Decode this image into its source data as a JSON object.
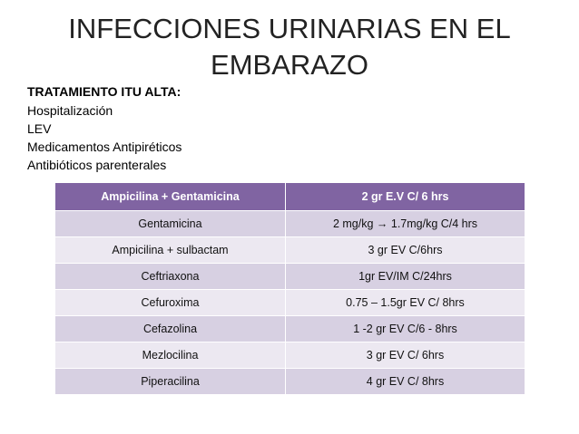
{
  "slide": {
    "title": "INFECCIONES URINARIAS EN EL EMBARAZO",
    "subtitle": "TRATAMIENTO ITU ALTA:",
    "items": [
      "Hospitalización",
      "LEV",
      "Medicamentos Antipiréticos",
      "Antibióticos parenterales"
    ]
  },
  "table": {
    "header": [
      "Ampicilina + Gentamicina",
      "2 gr E.V C/ 6 hrs"
    ],
    "rows": [
      [
        "Gentamicina",
        "2 mg/kg → 1.7mg/kg C/4 hrs"
      ],
      [
        "Ampicilina + sulbactam",
        "3 gr EV C/6hrs"
      ],
      [
        "Ceftriaxona",
        "1gr EV/IM C/24hrs"
      ],
      [
        "Cefuroxima",
        "0.75 – 1.5gr EV  C/ 8hrs"
      ],
      [
        "Cefazolina",
        "1 -2 gr  EV C/6 - 8hrs"
      ],
      [
        "Mezlocilina",
        "3 gr EV C/ 6hrs"
      ],
      [
        "Piperacilina",
        "4 gr EV C/ 8hrs"
      ]
    ]
  },
  "colors": {
    "header_bg": "#8064a2",
    "row_dark": "#d7d0e2",
    "row_light": "#ece8f1"
  }
}
